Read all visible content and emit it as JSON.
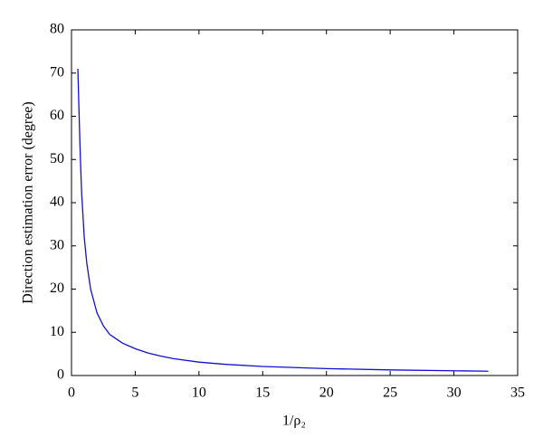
{
  "chart_data": {
    "type": "line",
    "x_label": "1/ρ₂",
    "y_label": "Direction estimation error (degree)",
    "xlim": [
      0,
      35
    ],
    "xticks": [
      0,
      5,
      10,
      15,
      20,
      25,
      30,
      35
    ],
    "ylim": [
      0,
      80
    ],
    "yticks": [
      0,
      10,
      20,
      30,
      40,
      50,
      60,
      70,
      80
    ],
    "grid": false,
    "x": [
      0.5,
      0.6,
      0.7,
      0.8,
      1,
      1.2,
      1.5,
      2,
      2.5,
      3,
      4,
      5,
      6,
      7,
      8,
      10,
      12,
      15,
      20,
      25,
      30,
      32.7
    ],
    "series": [
      {
        "color": "#1010d0",
        "values": [
          71,
          60,
          50,
          42,
          32,
          26,
          20,
          14.5,
          11.5,
          9.5,
          7.5,
          6.2,
          5.2,
          4.5,
          3.9,
          3.1,
          2.6,
          2.1,
          1.6,
          1.3,
          1.1,
          1.0
        ]
      }
    ]
  }
}
